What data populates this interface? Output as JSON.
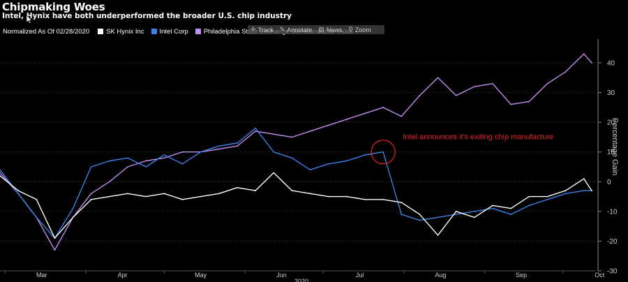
{
  "header": {
    "title": "Chipmaking Woes",
    "subtitle": "Intel, Hynix have both underperformed the broader U.S. chip industry"
  },
  "legend": {
    "normalized_label": "Normalized As Of 02/28/2020"
  },
  "toolbar": {
    "items": [
      {
        "label": "Track",
        "icon": "crosshair-icon"
      },
      {
        "label": "Annotate",
        "icon": "pencil-icon"
      },
      {
        "label": "News",
        "icon": "news-icon"
      },
      {
        "label": "Zoom",
        "icon": "magnifier-icon"
      }
    ]
  },
  "colors": {
    "background": "#000000",
    "sk_hynix": "#ffffff",
    "intel": "#3b82e6",
    "sox": "#c38df0",
    "annotation": "#e8202a",
    "grid": "#5a5a5a"
  },
  "chart_data": {
    "type": "line",
    "title": "Chipmaking Woes",
    "subtitle": "Intel, Hynix have both underperformed the broader U.S. chip industry",
    "xlabel": "2020",
    "ylabel": "Percentage Gain",
    "ylim": [
      -30,
      48
    ],
    "yticks": [
      -30,
      -20,
      -10,
      0,
      10,
      20,
      30,
      40
    ],
    "x_month_labels": [
      "Mar",
      "Apr",
      "May",
      "Jun",
      "Jul",
      "Aug",
      "Sep",
      "Oct"
    ],
    "grid": "horizontal dotted",
    "x": [
      "2020-02-28",
      "2020-03-06",
      "2020-03-13",
      "2020-03-20",
      "2020-03-27",
      "2020-04-03",
      "2020-04-10",
      "2020-04-17",
      "2020-04-24",
      "2020-05-01",
      "2020-05-08",
      "2020-05-15",
      "2020-05-22",
      "2020-05-29",
      "2020-06-05",
      "2020-06-12",
      "2020-06-19",
      "2020-06-26",
      "2020-07-03",
      "2020-07-10",
      "2020-07-17",
      "2020-07-24",
      "2020-07-31",
      "2020-08-07",
      "2020-08-14",
      "2020-08-21",
      "2020-08-28",
      "2020-09-04",
      "2020-09-11",
      "2020-09-18",
      "2020-09-25",
      "2020-10-02",
      "2020-10-09",
      "2020-10-12"
    ],
    "series": [
      {
        "name": "SK Hynix Inc",
        "color": "#ffffff",
        "values": [
          2,
          -3,
          -6,
          -19,
          -12,
          -6,
          -5,
          -4,
          -5,
          -4,
          -6,
          -5,
          -4,
          -2,
          -3,
          3,
          -3,
          -4,
          -5,
          -5,
          -6,
          -6,
          -7,
          -11,
          -18,
          -10,
          -12,
          -8,
          -9,
          -5,
          -5,
          -3,
          1,
          -3
        ]
      },
      {
        "name": "Intel Corp",
        "color": "#3b82e6",
        "values": [
          4,
          -4,
          -12,
          -19,
          -9,
          5,
          7,
          8,
          5,
          9,
          6,
          10,
          12,
          13,
          18,
          10,
          8,
          4,
          6,
          7,
          9,
          10,
          -11,
          -13,
          -12,
          -11,
          -10,
          -9,
          -11,
          -8,
          -6,
          -4,
          -3,
          -3
        ]
      },
      {
        "name": "Philadelphia Stock Exchange Semiconductor Index",
        "color": "#c38df0",
        "values": [
          3,
          -4,
          -12,
          -23,
          -12,
          -4,
          0,
          5,
          7,
          8,
          10,
          10,
          11,
          12,
          17,
          16,
          15,
          17,
          19,
          21,
          23,
          25,
          22,
          29,
          35,
          29,
          32,
          33,
          26,
          27,
          33,
          37,
          43,
          40
        ]
      }
    ],
    "annotations": [
      {
        "text": "Intel announces it's exiting chip manufacture",
        "x": "2020-07-24",
        "y": 10,
        "color": "#e8202a"
      }
    ]
  }
}
